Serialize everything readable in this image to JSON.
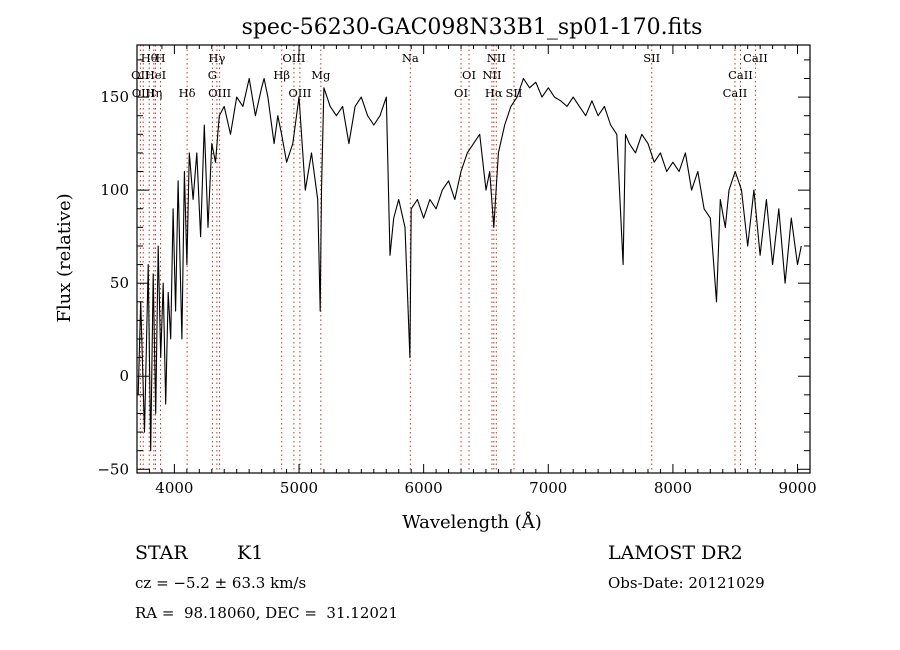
{
  "chart_data": {
    "type": "line",
    "title": "spec-56230-GAC098N33B1_sp01-170.fits",
    "xlabel": "Wavelength (Å)",
    "ylabel": "Flux (relative)",
    "xlim": [
      3700,
      9100
    ],
    "ylim": [
      -52,
      178
    ],
    "x_ticks": [
      4000,
      5000,
      6000,
      7000,
      8000,
      9000
    ],
    "y_ticks": [
      -50,
      0,
      50,
      100,
      150
    ],
    "line_color": "#000000",
    "marker_color": "#c0392b",
    "grid": false,
    "series": [
      {
        "x": [
          3710,
          3730,
          3760,
          3790,
          3810,
          3830,
          3850,
          3870,
          3890,
          3910,
          3930,
          3950,
          3970,
          3990,
          4010,
          4030,
          4060,
          4080,
          4100,
          4120,
          4150,
          4180,
          4210,
          4240,
          4270,
          4300,
          4330,
          4360,
          4400,
          4450,
          4500,
          4550,
          4600,
          4650,
          4700,
          4720,
          4750,
          4780,
          4800,
          4830,
          4860,
          4900,
          4950,
          5000,
          5050,
          5100,
          5150,
          5170,
          5180,
          5200,
          5250,
          5300,
          5350,
          5400,
          5450,
          5500,
          5550,
          5600,
          5650,
          5700,
          5730,
          5760,
          5800,
          5850,
          5890,
          5900,
          5950,
          6000,
          6050,
          6100,
          6150,
          6200,
          6250,
          6300,
          6350,
          6400,
          6450,
          6500,
          6530,
          6563,
          6600,
          6650,
          6700,
          6750,
          6800,
          6850,
          6900,
          6950,
          7000,
          7050,
          7100,
          7150,
          7200,
          7250,
          7300,
          7350,
          7400,
          7450,
          7500,
          7550,
          7600,
          7620,
          7650,
          7700,
          7750,
          7800,
          7850,
          7900,
          7950,
          8000,
          8050,
          8100,
          8150,
          8200,
          8250,
          8300,
          8350,
          8380,
          8420,
          8450,
          8500,
          8550,
          8600,
          8650,
          8700,
          8750,
          8800,
          8850,
          8900,
          8950,
          9000,
          9030
        ],
        "values": [
          -10,
          40,
          -30,
          60,
          -40,
          55,
          -20,
          70,
          10,
          50,
          -15,
          45,
          20,
          90,
          35,
          105,
          20,
          110,
          60,
          120,
          95,
          120,
          75,
          135,
          80,
          125,
          115,
          140,
          145,
          130,
          150,
          145,
          160,
          140,
          155,
          160,
          150,
          135,
          125,
          140,
          130,
          115,
          125,
          150,
          100,
          120,
          95,
          35,
          100,
          155,
          145,
          140,
          145,
          125,
          145,
          150,
          140,
          135,
          140,
          150,
          65,
          85,
          95,
          80,
          10,
          90,
          95,
          85,
          95,
          90,
          100,
          105,
          95,
          110,
          120,
          125,
          130,
          100,
          110,
          80,
          120,
          135,
          145,
          150,
          160,
          155,
          158,
          150,
          155,
          150,
          148,
          145,
          150,
          145,
          140,
          148,
          140,
          145,
          135,
          130,
          60,
          130,
          125,
          120,
          130,
          125,
          115,
          120,
          110,
          115,
          110,
          120,
          100,
          110,
          90,
          85,
          40,
          95,
          80,
          100,
          110,
          100,
          70,
          100,
          65,
          95,
          60,
          90,
          50,
          85,
          60,
          70
        ]
      }
    ],
    "lines": [
      {
        "label": "Hθ",
        "x": 3798,
        "row": 0
      },
      {
        "label": "H",
        "x": 3889,
        "row": 0
      },
      {
        "label": "OII",
        "x": 3727,
        "row": 1
      },
      {
        "label": "HeI",
        "x": 3848,
        "row": 1
      },
      {
        "label": "OIII",
        "x": 3750,
        "row": 2
      },
      {
        "label": "Hη",
        "x": 3835,
        "row": 2
      },
      {
        "label": "Hδ",
        "x": 4102,
        "row": 2
      },
      {
        "label": "Hγ",
        "x": 4341,
        "row": 0
      },
      {
        "label": "G",
        "x": 4305,
        "row": 1
      },
      {
        "label": "OIII",
        "x": 4363,
        "row": 2
      },
      {
        "label": "OIII",
        "x": 4959,
        "row": 0
      },
      {
        "label": "Hβ",
        "x": 4861,
        "row": 1
      },
      {
        "label": "Mg",
        "x": 5175,
        "row": 1
      },
      {
        "label": "OIII",
        "x": 5007,
        "row": 2
      },
      {
        "label": "Na",
        "x": 5893,
        "row": 0
      },
      {
        "label": "OI",
        "x": 6364,
        "row": 1
      },
      {
        "label": "OI",
        "x": 6300,
        "row": 2
      },
      {
        "label": "NII",
        "x": 6583,
        "row": 0
      },
      {
        "label": "NII",
        "x": 6548,
        "row": 1
      },
      {
        "label": "Hα",
        "x": 6563,
        "row": 2
      },
      {
        "label": "SII",
        "x": 6725,
        "row": 2
      },
      {
        "label": "SII",
        "x": 7830,
        "row": 0
      },
      {
        "label": "CaII",
        "x": 8662,
        "row": 0
      },
      {
        "label": "CaII",
        "x": 8542,
        "row": 1
      },
      {
        "label": "CaII",
        "x": 8498,
        "row": 2
      }
    ]
  },
  "footer": {
    "object_type": "STAR",
    "subclass": "K1",
    "redshift": "cz = −5.2 ± 63.3 km/s",
    "coords": "RA =  98.18060, DEC =  31.12021",
    "survey": "LAMOST DR2",
    "obs_date": "Obs-Date: 20121029"
  }
}
